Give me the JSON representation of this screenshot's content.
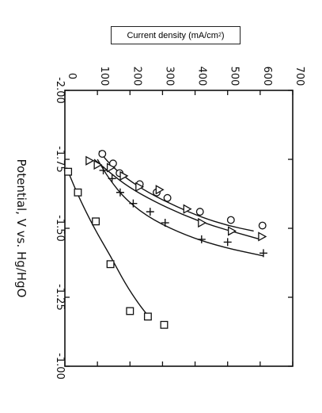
{
  "label_box": {
    "prefix": "Current density (mA/cm",
    "sup": "2",
    "suffix": ")"
  },
  "chart_data": {
    "type": "scatter",
    "orientation": "rotated-90",
    "xlabel": "Potential,  V  vs.  Hg/HgO",
    "ylabel": "Current density (mA/cm2)",
    "xlim": [
      -2.0,
      -1.0
    ],
    "ylim": [
      0,
      700
    ],
    "x_ticks": [
      -2.0,
      -1.75,
      -1.5,
      -1.25,
      -1.0
    ],
    "x_tick_labels": [
      "-2.00",
      "-1.75",
      "-1.50",
      "-1.25",
      "-1.00"
    ],
    "y_ticks": [
      0,
      100,
      200,
      300,
      400,
      500,
      600,
      700
    ],
    "y_tick_labels": [
      "0",
      "100",
      "200",
      "300",
      "400",
      "500",
      "600",
      "700"
    ],
    "grid": false,
    "series": [
      {
        "marker": "circle",
        "points": [
          [
            -1.77,
            115
          ],
          [
            -1.735,
            148
          ],
          [
            -1.7,
            168
          ],
          [
            -1.66,
            230
          ],
          [
            -1.63,
            282
          ],
          [
            -1.61,
            315
          ],
          [
            -1.56,
            415
          ],
          [
            -1.53,
            510
          ],
          [
            -1.51,
            607
          ]
        ],
        "curve": [
          [
            -1.78,
            105
          ],
          [
            -1.73,
            140
          ],
          [
            -1.68,
            190
          ],
          [
            -1.63,
            255
          ],
          [
            -1.58,
            340
          ],
          [
            -1.54,
            420
          ],
          [
            -1.51,
            500
          ],
          [
            -1.49,
            580
          ]
        ]
      },
      {
        "marker": "triangle",
        "points": [
          [
            -1.745,
            75
          ],
          [
            -1.73,
            100
          ],
          [
            -1.72,
            140
          ],
          [
            -1.69,
            180
          ],
          [
            -1.65,
            228
          ],
          [
            -1.64,
            290
          ],
          [
            -1.57,
            375
          ],
          [
            -1.52,
            420
          ],
          [
            -1.49,
            512
          ],
          [
            -1.47,
            605
          ]
        ],
        "curve": [
          [
            -1.75,
            90
          ],
          [
            -1.7,
            140
          ],
          [
            -1.65,
            195
          ],
          [
            -1.6,
            270
          ],
          [
            -1.55,
            360
          ],
          [
            -1.51,
            450
          ],
          [
            -1.48,
            540
          ],
          [
            -1.46,
            600
          ]
        ]
      },
      {
        "marker": "plus",
        "points": [
          [
            -1.71,
            118
          ],
          [
            -1.68,
            145
          ],
          [
            -1.63,
            170
          ],
          [
            -1.59,
            210
          ],
          [
            -1.56,
            262
          ],
          [
            -1.52,
            308
          ],
          [
            -1.46,
            420
          ],
          [
            -1.45,
            500
          ],
          [
            -1.41,
            610
          ]
        ],
        "curve": [
          [
            -1.75,
            100
          ],
          [
            -1.68,
            135
          ],
          [
            -1.6,
            190
          ],
          [
            -1.53,
            270
          ],
          [
            -1.47,
            380
          ],
          [
            -1.43,
            490
          ],
          [
            -1.4,
            610
          ]
        ]
      },
      {
        "marker": "square",
        "points": [
          [
            -1.705,
            10
          ],
          [
            -1.63,
            40
          ],
          [
            -1.525,
            95
          ],
          [
            -1.37,
            140
          ],
          [
            -1.2,
            200
          ],
          [
            -1.18,
            255
          ],
          [
            -1.15,
            305
          ]
        ],
        "curve": [
          [
            -1.72,
            5
          ],
          [
            -1.62,
            40
          ],
          [
            -1.5,
            90
          ],
          [
            -1.4,
            140
          ],
          [
            -1.3,
            185
          ],
          [
            -1.22,
            230
          ],
          [
            -1.17,
            265
          ]
        ]
      }
    ]
  }
}
